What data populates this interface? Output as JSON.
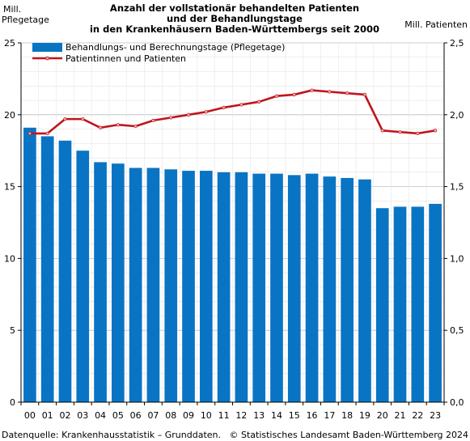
{
  "chart_data": {
    "type": "bar",
    "title_lines": [
      "Anzahl der vollstationär behandelten Patienten",
      "und der Behandlungstage",
      "in den Krankenhäusern Baden-Württembergs seit 2000"
    ],
    "left_axis_title_lines": [
      "Mill.",
      "Pflegetage"
    ],
    "right_axis_title": "Mill. Patienten",
    "categories": [
      "00",
      "01",
      "02",
      "03",
      "04",
      "05",
      "06",
      "07",
      "08",
      "09",
      "10",
      "11",
      "12",
      "13",
      "14",
      "15",
      "16",
      "17",
      "18",
      "19",
      "20",
      "21",
      "22",
      "23"
    ],
    "y_left": {
      "min": 0,
      "max": 25,
      "ticks": [
        0,
        5,
        10,
        15,
        20,
        25
      ],
      "tick_labels": [
        "0",
        "5",
        "10",
        "15",
        "20",
        "25"
      ]
    },
    "y_right": {
      "min": 0,
      "max": 2.5,
      "ticks": [
        0,
        0.5,
        1.0,
        1.5,
        2.0,
        2.5
      ],
      "tick_labels": [
        "0,0",
        "0,5",
        "1,0",
        "1,5",
        "2,0",
        "2,5"
      ]
    },
    "grid": true,
    "legend_position": "top-left",
    "series": [
      {
        "name": "Behandlungs- und Berechnungstage (Pflegetage)",
        "kind": "bar",
        "axis": "left",
        "color": "#0a74c4",
        "values": [
          19.1,
          18.5,
          18.2,
          17.5,
          16.7,
          16.6,
          16.3,
          16.3,
          16.2,
          16.1,
          16.1,
          16.0,
          16.0,
          15.9,
          15.9,
          15.8,
          15.9,
          15.7,
          15.6,
          15.5,
          13.5,
          13.6,
          13.6,
          13.8
        ]
      },
      {
        "name": "Patientinnen und Patienten",
        "kind": "line",
        "axis": "right",
        "color": "#c0141c",
        "values": [
          1.87,
          1.87,
          1.97,
          1.97,
          1.91,
          1.93,
          1.92,
          1.96,
          1.98,
          2.0,
          2.02,
          2.05,
          2.07,
          2.09,
          2.13,
          2.14,
          2.17,
          2.16,
          2.15,
          2.14,
          1.89,
          1.88,
          1.87,
          1.89
        ]
      }
    ]
  },
  "footer": {
    "source": "Datenquelle: Krankenhausstatistik – Grunddaten.",
    "copyright": "© Statistisches Landesamt Baden-Württemberg 2024"
  }
}
